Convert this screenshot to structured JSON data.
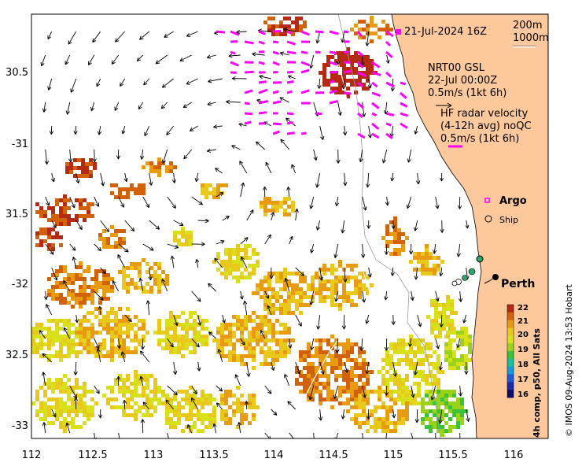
{
  "map": {
    "longitude_ticks": [
      "112",
      "112.5",
      "113",
      "113.5",
      "114",
      "114.5",
      "115",
      "115.5",
      "116"
    ],
    "latitude_ticks": [
      "30.5",
      "-31",
      "31.5",
      "-32",
      "32.5",
      "-33"
    ],
    "city_label": "Perth",
    "isobaths": {
      "shallow": "200m",
      "deep": "1000m"
    },
    "argo_date": "21-Jul-2024 16Z",
    "model": {
      "name": "NRT00 GSL",
      "time": "22-Jul 00:00Z",
      "scale": "0.5m/s (1kt 6h)"
    },
    "hf_radar": {
      "line1": "HF radar velocity",
      "line2": "(4-12h avg) noQC",
      "scale": "0.5m/s (1kt 6h)"
    },
    "legend": {
      "argo": "Argo",
      "ship": "Ship"
    },
    "colorbar": {
      "title": "4h comp, p50, All Sats",
      "ticks": [
        "22",
        "21",
        "20",
        "19",
        "18",
        "17",
        "16"
      ],
      "colors": [
        "#b52a12",
        "#d2620a",
        "#e89a10",
        "#e8c81a",
        "#d8e01a",
        "#9ad21a",
        "#3cc23a",
        "#12c2a0",
        "#129ae0",
        "#1a5ae0",
        "#1a2ab0",
        "#0a0a70"
      ]
    },
    "credit": "© IMOS 09-Aug-2024 13:53 Hobart",
    "colors": {
      "land": "#fdc89b",
      "hf_arrow": "#ff00ff",
      "argo": "#ff00ff"
    }
  }
}
